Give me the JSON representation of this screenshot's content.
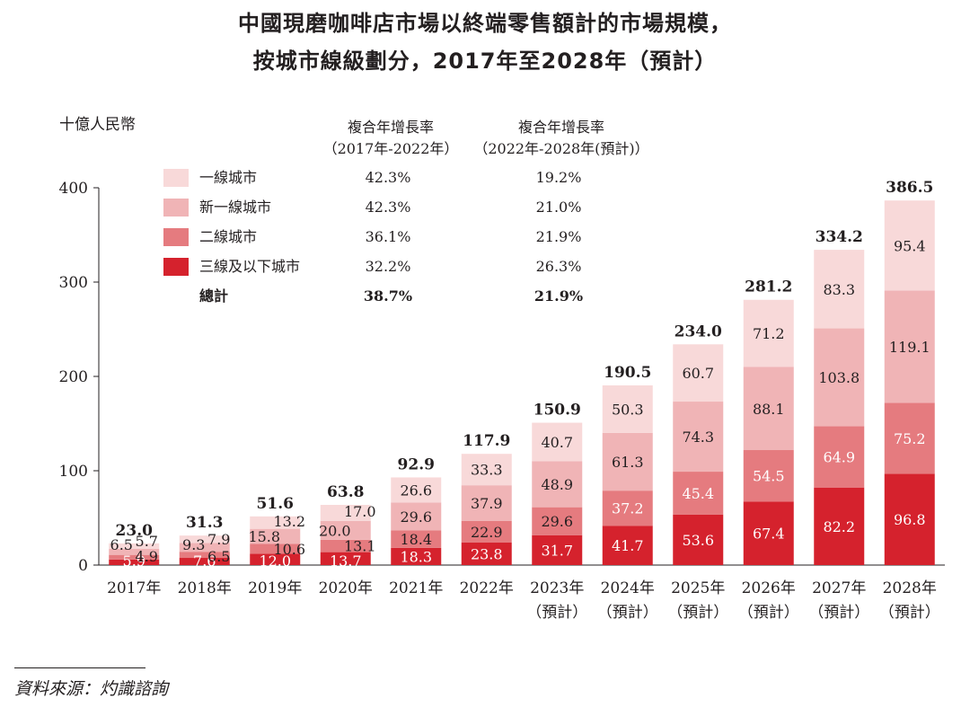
{
  "title_line1": "中國現磨咖啡店市場以終端零售額計的市場規模，",
  "title_line2": "按城市線級劃分，2017年至2028年（預計）",
  "unit_label": "十億人民幣",
  "cagr_headers": [
    {
      "line1": "複合年增長率",
      "line2": "（2017年-2022年）"
    },
    {
      "line1": "複合年增長率",
      "line2": "（2022年-2028年(預計)）"
    }
  ],
  "legend": [
    {
      "label": "一線城市",
      "cagr1": "42.3%",
      "cagr2": "19.2%",
      "color": "#f8d9d9"
    },
    {
      "label": "新一線城市",
      "cagr1": "42.3%",
      "cagr2": "21.0%",
      "color": "#f0b4b6"
    },
    {
      "label": "二線城市",
      "cagr1": "36.1%",
      "cagr2": "21.9%",
      "color": "#e57b7f"
    },
    {
      "label": "三線及以下城市",
      "cagr1": "32.2%",
      "cagr2": "26.3%",
      "color": "#d5222d"
    }
  ],
  "total_row": {
    "label": "總計",
    "cagr1": "38.7%",
    "cagr2": "21.9%"
  },
  "source": "資料來源：灼識諮詢",
  "chart_data": {
    "type": "bar",
    "stacked": true,
    "title": "中國現磨咖啡店市場以終端零售額計的市場規模，按城市線級劃分，2017年至2028年（預計）",
    "ylabel": "十億人民幣",
    "ylim": [
      0,
      400
    ],
    "yticks": [
      0,
      100,
      200,
      300,
      400
    ],
    "categories": [
      {
        "year": "2017年",
        "sub": ""
      },
      {
        "year": "2018年",
        "sub": ""
      },
      {
        "year": "2019年",
        "sub": ""
      },
      {
        "year": "2020年",
        "sub": ""
      },
      {
        "year": "2021年",
        "sub": ""
      },
      {
        "year": "2022年",
        "sub": ""
      },
      {
        "year": "2023年",
        "sub": "（預計）"
      },
      {
        "year": "2024年",
        "sub": "（預計）"
      },
      {
        "year": "2025年",
        "sub": "（預計）"
      },
      {
        "year": "2026年",
        "sub": "（預計）"
      },
      {
        "year": "2027年",
        "sub": "（預計）"
      },
      {
        "year": "2028年",
        "sub": "（預計）"
      }
    ],
    "series": [
      {
        "name": "三線及以下城市",
        "color": "#d5222d",
        "values": [
          5.9,
          7.6,
          12.0,
          13.7,
          18.3,
          23.8,
          31.7,
          41.7,
          53.6,
          67.4,
          82.2,
          96.8
        ]
      },
      {
        "name": "二線城市",
        "color": "#e57b7f",
        "values": [
          4.9,
          6.5,
          10.6,
          13.1,
          18.4,
          22.9,
          29.6,
          37.2,
          45.4,
          54.5,
          64.9,
          75.2
        ]
      },
      {
        "name": "新一線城市",
        "color": "#f0b4b6",
        "values": [
          6.5,
          9.3,
          15.8,
          20.0,
          29.6,
          37.9,
          48.9,
          61.3,
          74.3,
          88.1,
          103.8,
          119.1
        ]
      },
      {
        "name": "一線城市",
        "color": "#f8d9d9",
        "values": [
          5.7,
          7.9,
          13.2,
          17.0,
          26.6,
          33.3,
          40.7,
          50.3,
          60.7,
          71.2,
          83.3,
          95.4
        ]
      }
    ],
    "totals": [
      23.0,
      31.3,
      51.6,
      63.8,
      92.9,
      117.9,
      150.9,
      190.5,
      234.0,
      281.2,
      334.2,
      386.5
    ]
  }
}
